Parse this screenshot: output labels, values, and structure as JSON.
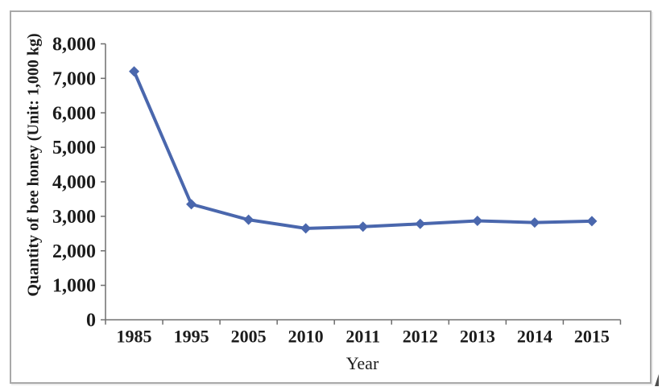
{
  "window": {
    "background": "#ffffff",
    "border_color": "#a9a9a9"
  },
  "chart_data": {
    "type": "line",
    "title": "",
    "categories": [
      "1985",
      "1995",
      "2005",
      "2010",
      "2011",
      "2012",
      "2013",
      "2014",
      "2015"
    ],
    "series": [
      {
        "name": "Quantity of bee honey",
        "color": "#4a67ad",
        "marker": "diamond",
        "values": [
          7200,
          3350,
          2900,
          2650,
          2700,
          2780,
          2870,
          2820,
          2860
        ]
      }
    ],
    "xlabel": "Year",
    "ylabel": "Quantity of bee honey (Unit: 1,000 kg)",
    "ylim": [
      0,
      8000
    ],
    "ytick_step": 1000,
    "ytick_labels": [
      "0",
      "1,000",
      "2,000",
      "3,000",
      "4,000",
      "5,000",
      "6,000",
      "7,000",
      "8,000"
    ],
    "grid": false,
    "legend": "none",
    "axis_color": "#6e6e6e",
    "text_color": "#1c1c1c"
  },
  "artifacts": {
    "corner_mark": true,
    "corner_mark_color": "#4f4f4f"
  }
}
